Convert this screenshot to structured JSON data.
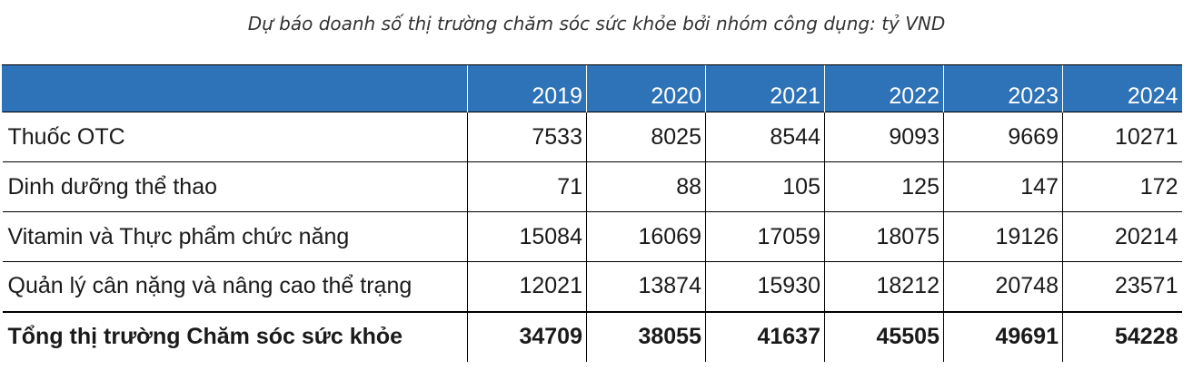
{
  "caption": "Dự báo doanh số thị trường chăm sóc sức khỏe bởi nhóm công dụng: tỷ VND",
  "table": {
    "header": [
      "",
      "2019",
      "2020",
      "2021",
      "2022",
      "2023",
      "2024"
    ],
    "rows": [
      {
        "label": "Thuốc OTC",
        "values": [
          "7533",
          "8025",
          "8544",
          "9093",
          "9669",
          "10271"
        ]
      },
      {
        "label": "Dinh dưỡng thể thao",
        "values": [
          "71",
          "88",
          "105",
          "125",
          "147",
          "172"
        ]
      },
      {
        "label": "Vitamin và Thực phẩm chức năng",
        "values": [
          "15084",
          "16069",
          "17059",
          "18075",
          "19126",
          "20214"
        ]
      },
      {
        "label": "Quản lý cân nặng và nâng cao thể trạng",
        "values": [
          "12021",
          "13874",
          "15930",
          "18212",
          "20748",
          "23571"
        ]
      },
      {
        "label": "Tổng thị trường Chăm sóc sức khỏe",
        "values": [
          "34709",
          "38055",
          "41637",
          "45505",
          "49691",
          "54228"
        ]
      }
    ]
  },
  "colors": {
    "header_background": "#2e72b7",
    "header_text": "#ffffff"
  }
}
